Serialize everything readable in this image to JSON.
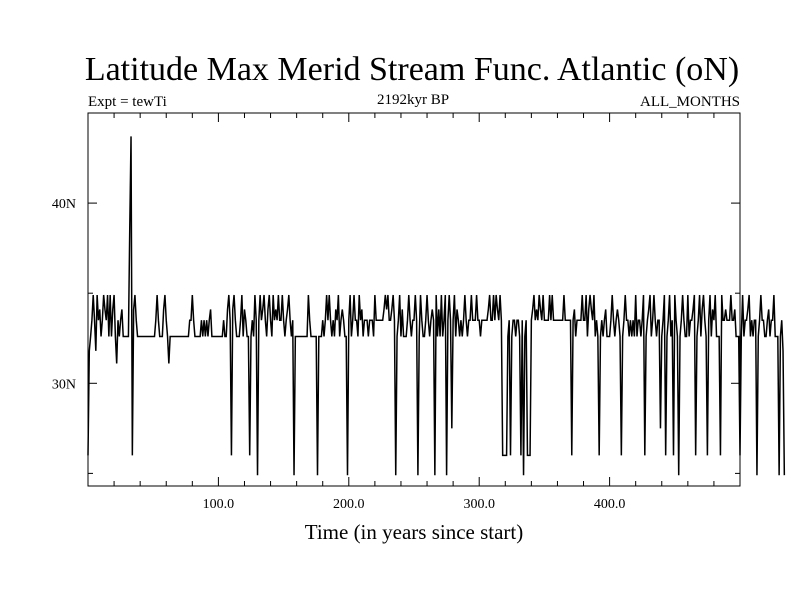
{
  "chart_data": {
    "type": "line",
    "title": "Latitude Max Merid Stream Func. Atlantic (oN)",
    "subtitle_left": "Expt = tewTi",
    "subtitle_center": "2192kyr BP",
    "subtitle_right": "ALL_MONTHS",
    "xlabel": "Time (in years since start)",
    "ylabel": "",
    "xlim": [
      0,
      500
    ],
    "ylim": [
      24.3,
      45.0
    ],
    "x_ticks": [
      {
        "value": 100,
        "label": "100.0"
      },
      {
        "value": 200,
        "label": "200.0"
      },
      {
        "value": 300,
        "label": "300.0"
      },
      {
        "value": 400,
        "label": "400.0"
      }
    ],
    "y_ticks": [
      {
        "value": 30,
        "label": "30N"
      },
      {
        "value": 40,
        "label": "40N"
      }
    ],
    "grid": false,
    "series_color": "#000000",
    "x_start": 0,
    "x_step": 1,
    "series": [
      {
        "values": [
          26.0,
          31.8,
          32.6,
          33.5,
          34.9,
          33.5,
          31.8,
          34.9,
          33.5,
          34.1,
          32.6,
          33.5,
          34.9,
          34.1,
          33.5,
          34.9,
          32.6,
          34.9,
          32.6,
          34.1,
          34.9,
          32.6,
          31.1,
          33.5,
          32.6,
          33.5,
          34.1,
          32.6,
          32.6,
          32.6,
          32.6,
          32.6,
          38.5,
          43.7,
          26.0,
          34.1,
          34.9,
          33.5,
          32.6,
          32.6,
          32.6,
          32.6,
          32.6,
          32.6,
          32.6,
          32.6,
          32.6,
          32.6,
          32.6,
          32.6,
          32.6,
          32.6,
          33.5,
          34.9,
          33.5,
          32.6,
          32.6,
          32.6,
          34.1,
          34.9,
          33.5,
          32.6,
          31.1,
          32.6,
          32.6,
          32.6,
          32.6,
          32.6,
          32.6,
          32.6,
          32.6,
          32.6,
          32.6,
          32.6,
          32.6,
          32.6,
          32.6,
          32.6,
          33.5,
          33.5,
          34.9,
          33.5,
          32.6,
          32.6,
          32.6,
          32.6,
          32.6,
          33.5,
          32.6,
          33.5,
          32.6,
          33.5,
          32.6,
          33.5,
          34.1,
          32.6,
          32.6,
          32.6,
          32.6,
          32.6,
          32.6,
          32.6,
          32.6,
          32.6,
          33.5,
          32.6,
          32.6,
          34.1,
          34.9,
          33.5,
          26.0,
          34.1,
          34.9,
          33.5,
          32.6,
          32.6,
          32.6,
          33.5,
          34.9,
          32.6,
          34.1,
          33.5,
          32.6,
          32.6,
          26.0,
          32.6,
          33.5,
          32.6,
          34.9,
          33.5,
          24.9,
          33.5,
          34.9,
          33.5,
          34.1,
          34.9,
          33.5,
          32.6,
          34.1,
          34.9,
          33.5,
          32.6,
          34.9,
          33.5,
          34.1,
          33.5,
          34.9,
          33.5,
          33.5,
          34.9,
          33.5,
          32.6,
          33.5,
          34.1,
          34.9,
          33.5,
          32.6,
          33.5,
          24.9,
          32.6,
          32.6,
          32.6,
          32.6,
          32.6,
          32.6,
          32.6,
          32.6,
          32.6,
          32.6,
          34.9,
          33.5,
          32.6,
          32.6,
          32.6,
          32.6,
          32.6,
          24.9,
          32.6,
          32.6,
          32.6,
          33.5,
          32.6,
          33.5,
          34.9,
          33.5,
          34.9,
          33.5,
          32.6,
          33.5,
          32.6,
          34.1,
          33.5,
          34.9,
          32.6,
          33.5,
          34.1,
          33.5,
          32.6,
          32.6,
          24.9,
          33.5,
          34.9,
          32.6,
          33.5,
          34.9,
          33.5,
          33.5,
          32.6,
          34.9,
          33.5,
          34.1,
          32.6,
          33.5,
          33.5,
          33.5,
          32.6,
          33.5,
          33.5,
          33.5,
          32.6,
          34.9,
          33.5,
          33.5,
          33.5,
          33.5,
          33.5,
          33.5,
          34.1,
          34.9,
          34.1,
          34.9,
          33.5,
          33.5,
          34.1,
          34.9,
          33.5,
          24.9,
          32.6,
          33.5,
          34.9,
          32.6,
          34.1,
          32.6,
          32.6,
          32.6,
          33.5,
          34.9,
          33.5,
          32.6,
          33.5,
          33.5,
          34.9,
          33.5,
          24.9,
          32.6,
          34.9,
          33.5,
          32.6,
          32.6,
          33.5,
          34.9,
          33.5,
          32.6,
          33.5,
          34.1,
          33.5,
          24.9,
          34.9,
          32.6,
          34.1,
          32.6,
          34.9,
          32.6,
          33.5,
          34.9,
          24.9,
          33.5,
          34.9,
          33.5,
          27.5,
          33.5,
          34.9,
          32.6,
          34.1,
          33.5,
          32.6,
          33.5,
          32.6,
          33.5,
          34.9,
          33.5,
          32.6,
          33.5,
          33.5,
          34.9,
          33.5,
          33.5,
          33.5,
          34.9,
          33.5,
          33.5,
          32.6,
          33.5,
          33.5,
          33.5,
          33.5,
          33.5,
          34.1,
          34.9,
          33.5,
          33.5,
          34.9,
          33.5,
          34.9,
          34.1,
          33.5,
          34.9,
          33.5,
          26.0,
          26.0,
          26.0,
          26.0,
          32.6,
          33.5,
          26.0,
          32.6,
          33.5,
          33.5,
          32.6,
          33.5,
          33.5,
          32.6,
          26.0,
          33.5,
          24.9,
          32.6,
          33.5,
          26.0,
          26.0,
          26.0,
          33.5,
          34.1,
          34.9,
          33.5,
          34.1,
          33.5,
          34.9,
          34.1,
          33.5,
          34.9,
          33.5,
          33.5,
          33.5,
          33.5,
          34.9,
          33.5,
          34.9,
          33.5,
          33.5,
          33.5,
          33.5,
          33.5,
          33.5,
          33.5,
          33.5,
          34.9,
          33.5,
          33.5,
          33.5,
          33.5,
          33.5,
          26.0,
          33.5,
          34.1,
          32.6,
          33.5,
          33.5,
          33.5,
          33.5,
          34.9,
          33.5,
          33.5,
          34.9,
          32.6,
          34.1,
          34.9,
          34.1,
          33.5,
          34.9,
          32.6,
          33.5,
          32.6,
          26.0,
          32.6,
          33.5,
          32.6,
          33.5,
          34.1,
          32.6,
          32.6,
          32.6,
          33.5,
          34.9,
          33.5,
          32.6,
          33.5,
          34.1,
          33.5,
          32.6,
          26.0,
          32.6,
          33.5,
          34.9,
          33.5,
          33.5,
          32.6,
          33.5,
          32.6,
          33.5,
          32.6,
          34.9,
          32.6,
          33.5,
          33.5,
          32.6,
          33.5,
          34.9,
          26.0,
          32.6,
          33.5,
          34.1,
          34.9,
          32.6,
          33.5,
          34.9,
          33.5,
          32.6,
          33.5,
          33.5,
          27.5,
          32.6,
          33.5,
          34.9,
          26.0,
          32.6,
          33.5,
          34.9,
          32.6,
          33.5,
          26.0,
          34.9,
          33.5,
          32.6,
          24.9,
          32.6,
          33.5,
          34.9,
          33.5,
          32.6,
          32.6,
          34.9,
          32.6,
          33.5,
          33.5,
          34.1,
          34.9,
          26.0,
          32.6,
          33.5,
          34.9,
          32.6,
          34.1,
          34.9,
          33.5,
          32.6,
          26.0,
          33.5,
          34.9,
          32.6,
          34.1,
          33.5,
          34.9,
          32.6,
          32.6,
          32.6,
          26.0,
          34.9,
          33.5,
          33.5,
          34.1,
          33.5,
          33.5,
          33.5,
          34.9,
          33.5,
          33.5,
          34.1,
          32.6,
          32.6,
          32.6,
          26.0,
          32.6,
          34.9,
          32.6,
          33.5,
          33.5,
          34.1,
          34.9,
          32.6,
          33.5,
          32.6,
          33.5,
          33.5,
          24.9,
          32.6,
          33.5,
          34.9,
          33.5,
          33.5,
          32.6,
          32.6,
          33.5,
          34.1,
          32.6,
          33.5,
          33.5,
          34.9,
          32.6,
          32.6,
          32.6,
          24.9,
          32.6,
          33.5,
          31.8,
          24.9
        ]
      }
    ]
  }
}
